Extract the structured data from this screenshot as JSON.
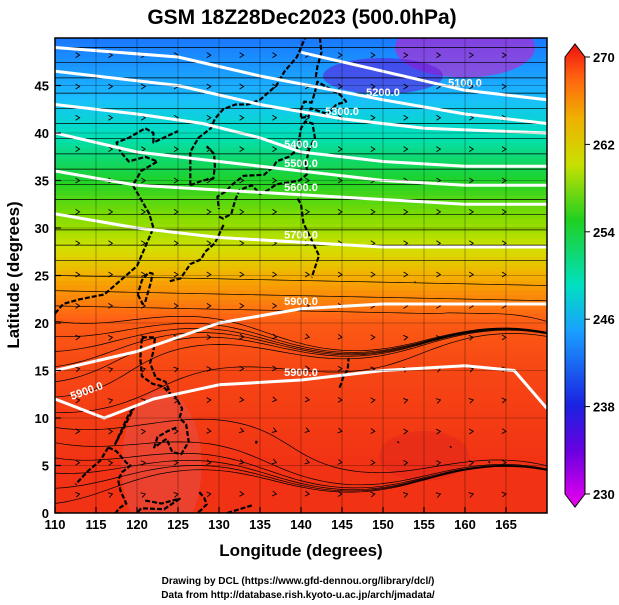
{
  "title": "GSM 18Z28Dec2023 (500.0hPa)",
  "xlabel": "Longitude (degrees)",
  "ylabel": "Latitude  (degrees)",
  "x_ticks": [
    "110",
    "115",
    "120",
    "125",
    "130",
    "135",
    "140",
    "145",
    "150",
    "155",
    "160",
    "165"
  ],
  "y_ticks": [
    "0",
    "5",
    "10",
    "15",
    "20",
    "25",
    "30",
    "35",
    "40",
    "45"
  ],
  "colorbar_ticks": [
    "270",
    "262",
    "254",
    "246",
    "238",
    "230"
  ],
  "credits": {
    "line1": "Drawing by DCL (https://www.gfd-dennou.org/library/dcl/)",
    "line2": "Data from http://database.rish.kyoto-u.ac.jp/arch/jmadata/"
  },
  "contour_labels": [
    "5100.0",
    "5200.0",
    "5300.0",
    "5400.0",
    "5500.0",
    "5600.0",
    "5700.0",
    "5900.0",
    "5900.0",
    "5900.0"
  ],
  "chart_data": {
    "type": "heatmap",
    "title": "GSM 18Z28Dec2023 (500.0hPa)",
    "xlabel": "Longitude (degrees)",
    "ylabel": "Latitude  (degrees)",
    "xlim": [
      110,
      170
    ],
    "ylim": [
      0,
      50
    ],
    "colorbar_range": [
      230,
      270
    ],
    "colorbar_ticks": [
      230,
      238,
      246,
      254,
      262,
      270
    ],
    "grid": true,
    "field_by_latitude": [
      {
        "lat": 0,
        "value": 266.5
      },
      {
        "lat": 5,
        "value": 266.5
      },
      {
        "lat": 10,
        "value": 266
      },
      {
        "lat": 15,
        "value": 265.5
      },
      {
        "lat": 20,
        "value": 264.5
      },
      {
        "lat": 25,
        "value": 261
      },
      {
        "lat": 30,
        "value": 256
      },
      {
        "lat": 35,
        "value": 252
      },
      {
        "lat": 40,
        "value": 249
      },
      {
        "lat": 45,
        "value": 245
      },
      {
        "lat": 50,
        "value": 242
      }
    ],
    "height_contours": [
      {
        "label": "5100.0",
        "points": [
          [
            140,
            48.5
          ],
          [
            150,
            46.5
          ],
          [
            160,
            44.5
          ],
          [
            170,
            43.5
          ]
        ]
      },
      {
        "label": "5200.0",
        "points": [
          [
            110,
            49
          ],
          [
            125,
            48
          ],
          [
            135,
            46
          ],
          [
            150,
            43.5
          ],
          [
            160,
            42
          ],
          [
            170,
            41
          ]
        ]
      },
      {
        "label": "5300.0",
        "points": [
          [
            110,
            46.5
          ],
          [
            125,
            45
          ],
          [
            135,
            43
          ],
          [
            145,
            41.5
          ],
          [
            155,
            40.5
          ],
          [
            170,
            40
          ]
        ]
      },
      {
        "label": "5400.0",
        "points": [
          [
            110,
            43
          ],
          [
            120,
            42
          ],
          [
            128,
            41
          ],
          [
            135,
            39.5
          ],
          [
            140,
            38
          ],
          [
            150,
            37
          ],
          [
            160,
            36.5
          ],
          [
            170,
            36.5
          ]
        ]
      },
      {
        "label": "5500.0",
        "points": [
          [
            110,
            40
          ],
          [
            120,
            38
          ],
          [
            130,
            37
          ],
          [
            140,
            36
          ],
          [
            150,
            35
          ],
          [
            160,
            34.5
          ],
          [
            170,
            34.5
          ]
        ]
      },
      {
        "label": "5600.0",
        "points": [
          [
            110,
            36
          ],
          [
            120,
            34.5
          ],
          [
            130,
            34
          ],
          [
            140,
            33.5
          ],
          [
            150,
            33
          ],
          [
            160,
            32.5
          ],
          [
            170,
            32.5
          ]
        ]
      },
      {
        "label": "5700.0",
        "points": [
          [
            110,
            31.5
          ],
          [
            120,
            30
          ],
          [
            130,
            29
          ],
          [
            140,
            28.5
          ],
          [
            150,
            28
          ],
          [
            160,
            28
          ],
          [
            170,
            28
          ]
        ]
      },
      {
        "label": "5900.0",
        "points": [
          [
            110,
            15
          ],
          [
            120,
            17
          ],
          [
            130,
            20
          ],
          [
            140,
            21.5
          ],
          [
            150,
            22
          ],
          [
            160,
            22
          ],
          [
            170,
            22
          ]
        ]
      },
      {
        "label": "5900.0",
        "points": [
          [
            110,
            12
          ],
          [
            116,
            10
          ],
          [
            122,
            12
          ],
          [
            130,
            13.5
          ],
          [
            140,
            14
          ],
          [
            150,
            15
          ],
          [
            160,
            15.5
          ],
          [
            166,
            15
          ],
          [
            170,
            11
          ]
        ]
      }
    ]
  }
}
